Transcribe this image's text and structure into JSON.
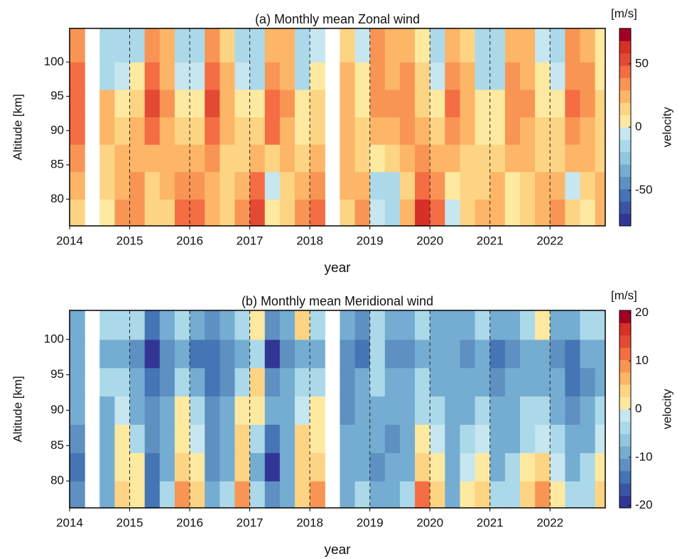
{
  "chart_data": [
    {
      "type": "heatmap",
      "title": "(a) Monthly mean Zonal wind",
      "xlabel": "year",
      "ylabel": "Altitude [km]",
      "colorbar_label": "velocity",
      "colorbar_unit": "[m/s]",
      "x": [
        2014.125,
        2014.375,
        2014.625,
        2014.875,
        2015.125,
        2015.375,
        2015.625,
        2015.875,
        2016.125,
        2016.375,
        2016.625,
        2016.875,
        2017.125,
        2017.375,
        2017.625,
        2017.875,
        2018.125,
        2018.375,
        2018.625,
        2018.875,
        2019.125,
        2019.375,
        2019.625,
        2019.875,
        2020.125,
        2020.375,
        2020.625,
        2020.875,
        2021.125,
        2021.375,
        2021.625,
        2021.875,
        2022.125,
        2022.375,
        2022.625,
        2022.875
      ],
      "y": [
        78,
        82,
        86,
        90,
        94,
        98,
        102
      ],
      "z": [
        [
          15,
          null,
          5,
          30,
          35,
          10,
          15,
          40,
          45,
          20,
          10,
          30,
          50,
          0,
          10,
          30,
          40,
          null,
          15,
          30,
          -5,
          -10,
          20,
          60,
          45,
          -5,
          10,
          20,
          25,
          0,
          10,
          20,
          30,
          10,
          5,
          25
        ],
        [
          20,
          null,
          10,
          25,
          30,
          15,
          20,
          35,
          35,
          25,
          10,
          25,
          40,
          -5,
          15,
          25,
          35,
          null,
          20,
          25,
          -10,
          -15,
          15,
          45,
          35,
          5,
          15,
          15,
          20,
          5,
          15,
          20,
          20,
          -5,
          10,
          20
        ],
        [
          30,
          null,
          15,
          20,
          25,
          25,
          20,
          20,
          25,
          30,
          15,
          15,
          25,
          15,
          20,
          15,
          25,
          null,
          25,
          15,
          5,
          10,
          20,
          30,
          25,
          20,
          15,
          10,
          10,
          20,
          25,
          15,
          15,
          20,
          20,
          15
        ],
        [
          40,
          null,
          20,
          10,
          20,
          45,
          25,
          10,
          15,
          45,
          20,
          10,
          15,
          40,
          25,
          5,
          15,
          null,
          20,
          10,
          20,
          25,
          30,
          20,
          15,
          35,
          20,
          5,
          5,
          30,
          25,
          10,
          10,
          35,
          25,
          10
        ],
        [
          45,
          null,
          25,
          0,
          10,
          50,
          30,
          5,
          5,
          50,
          25,
          5,
          0,
          45,
          30,
          0,
          10,
          null,
          25,
          5,
          30,
          30,
          35,
          15,
          5,
          40,
          25,
          0,
          0,
          35,
          30,
          5,
          5,
          40,
          30,
          10
        ],
        [
          40,
          null,
          -10,
          -5,
          0,
          45,
          25,
          -5,
          -5,
          40,
          20,
          -5,
          -10,
          35,
          25,
          -10,
          5,
          null,
          20,
          0,
          35,
          25,
          30,
          10,
          -5,
          30,
          20,
          -10,
          -10,
          30,
          25,
          0,
          -5,
          35,
          30,
          5
        ],
        [
          35,
          null,
          -15,
          -10,
          -10,
          35,
          20,
          -10,
          -10,
          30,
          15,
          -10,
          -15,
          25,
          20,
          -15,
          -5,
          null,
          15,
          -5,
          30,
          20,
          25,
          5,
          -10,
          25,
          15,
          -15,
          -15,
          20,
          20,
          -5,
          -10,
          30,
          25,
          0
        ]
      ],
      "xlim": [
        2014,
        2022.92
      ],
      "ylim": [
        76.1,
        104.9
      ],
      "xticks": [
        2014,
        2015,
        2016,
        2017,
        2018,
        2019,
        2020,
        2021,
        2022
      ],
      "yticks": [
        80,
        85,
        90,
        95,
        100
      ],
      "clim": [
        -78,
        78
      ],
      "cticks": [
        -50,
        0,
        50
      ],
      "grid": "x-dashed",
      "colormap": [
        "#313695",
        "#3b55a5",
        "#4575b4",
        "#5f90c2",
        "#74add1",
        "#92c5de",
        "#abd9e9",
        "#c6e6f0",
        "#fee9a0",
        "#fdd484",
        "#fdb567",
        "#f99554",
        "#f46d43",
        "#e34a33",
        "#d73027",
        "#a50026"
      ]
    },
    {
      "type": "heatmap",
      "title": "(b) Monthly mean Meridional wind",
      "xlabel": "year",
      "ylabel": "Altitude [km]",
      "colorbar_label": "velocity",
      "colorbar_unit": "[m/s]",
      "x": [
        2014.125,
        2014.375,
        2014.625,
        2014.875,
        2015.125,
        2015.375,
        2015.625,
        2015.875,
        2016.125,
        2016.375,
        2016.625,
        2016.875,
        2017.125,
        2017.375,
        2017.625,
        2017.875,
        2018.125,
        2018.375,
        2018.625,
        2018.875,
        2019.125,
        2019.375,
        2019.625,
        2019.875,
        2020.125,
        2020.375,
        2020.625,
        2020.875,
        2021.125,
        2021.375,
        2021.625,
        2021.875,
        2022.125,
        2022.375,
        2022.625,
        2022.875
      ],
      "y": [
        78,
        82,
        86,
        90,
        94,
        98,
        102
      ],
      "z": [
        [
          -12,
          null,
          -8,
          5,
          2,
          -15,
          -5,
          8,
          5,
          -10,
          -5,
          8,
          -5,
          -12,
          -8,
          5,
          8,
          null,
          -8,
          -5,
          -10,
          -8,
          -5,
          12,
          5,
          -8,
          2,
          5,
          -5,
          -5,
          3,
          8,
          2,
          -5,
          -3,
          5
        ],
        [
          -15,
          null,
          -10,
          2,
          0,
          -15,
          -8,
          5,
          2,
          -12,
          -8,
          5,
          -8,
          -18,
          -10,
          5,
          5,
          null,
          -10,
          -8,
          -12,
          -10,
          -8,
          5,
          2,
          -10,
          -2,
          2,
          -8,
          -5,
          0,
          3,
          -2,
          -8,
          -5,
          2
        ],
        [
          -12,
          null,
          -8,
          0,
          -5,
          -12,
          -10,
          2,
          -2,
          -12,
          -10,
          3,
          -5,
          -15,
          -8,
          3,
          2,
          null,
          -10,
          -10,
          -10,
          -12,
          -8,
          0,
          -2,
          -8,
          -5,
          -2,
          -10,
          -8,
          -3,
          -2,
          -5,
          -10,
          -8,
          -2
        ],
        [
          -10,
          null,
          -8,
          -2,
          -8,
          -12,
          -10,
          0,
          -5,
          -12,
          -10,
          0,
          2,
          -10,
          -8,
          -2,
          0,
          null,
          -12,
          -10,
          -8,
          -10,
          -10,
          -3,
          -5,
          -8,
          -8,
          -5,
          -10,
          -8,
          -5,
          -5,
          -8,
          -12,
          -10,
          -5
        ],
        [
          -8,
          null,
          -5,
          -5,
          -10,
          -15,
          -12,
          -3,
          -8,
          -14,
          -12,
          -3,
          3,
          -12,
          -10,
          -5,
          -3,
          null,
          -12,
          -10,
          -5,
          -10,
          -10,
          -5,
          -8,
          -10,
          -10,
          -8,
          -12,
          -10,
          -8,
          -8,
          -10,
          -14,
          -12,
          -8
        ],
        [
          -10,
          null,
          -8,
          -8,
          -12,
          -18,
          -12,
          -8,
          -15,
          -15,
          -12,
          -8,
          -5,
          -18,
          -12,
          -10,
          -8,
          null,
          -12,
          -15,
          -5,
          -12,
          -12,
          -8,
          -10,
          -10,
          -12,
          -10,
          -15,
          -12,
          -10,
          -10,
          -12,
          -15,
          -10,
          -8
        ],
        [
          -8,
          null,
          -5,
          -5,
          -3,
          -15,
          -10,
          -5,
          -10,
          -12,
          -8,
          -3,
          2,
          -12,
          -8,
          3,
          -5,
          null,
          -8,
          -12,
          -3,
          -10,
          -8,
          -5,
          -8,
          -8,
          -10,
          -5,
          -10,
          -8,
          -5,
          2,
          -8,
          -10,
          -5,
          -5
        ]
      ],
      "xlim": [
        2014,
        2022.92
      ],
      "ylim": [
        76.2,
        104.1
      ],
      "xticks": [
        2014,
        2015,
        2016,
        2017,
        2018,
        2019,
        2020,
        2021,
        2022
      ],
      "yticks": [
        80,
        85,
        90,
        95,
        100
      ],
      "clim": [
        -20.5,
        20.5
      ],
      "cticks": [
        -20,
        -10,
        0,
        10,
        20
      ],
      "grid": "x-dashed",
      "colormap": [
        "#313695",
        "#3b55a5",
        "#4575b4",
        "#5f90c2",
        "#74add1",
        "#92c5de",
        "#abd9e9",
        "#c6e6f0",
        "#fee9a0",
        "#fdd484",
        "#fdb567",
        "#f99554",
        "#f46d43",
        "#e34a33",
        "#d73027",
        "#a50026"
      ]
    }
  ]
}
